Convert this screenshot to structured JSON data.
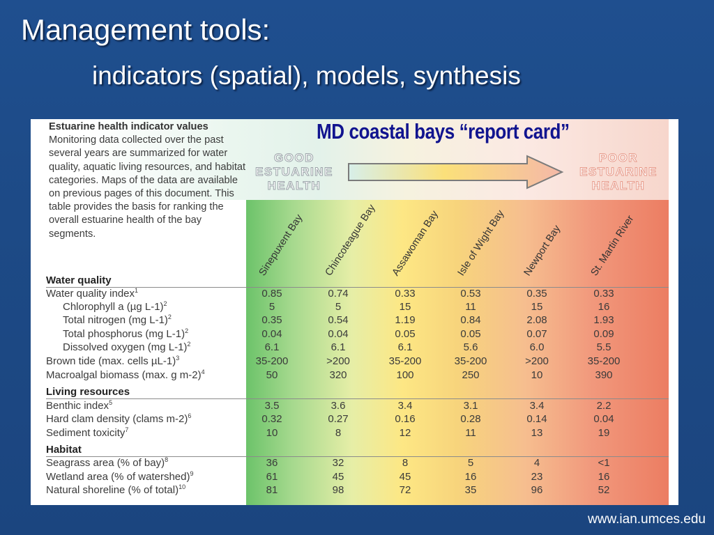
{
  "slide": {
    "title": "Management tools:",
    "subtitle": "indicators (spatial), models, synthesis",
    "footer": "www.ian.umces.edu"
  },
  "card": {
    "banner": "MD coastal bays “report card”",
    "intro_heading": "Estuarine health indicator values",
    "intro_body": "Monitoring data collected over the past several years are summarized for water quality, aquatic living resources, and habitat categories. Maps of the data are available on previous pages of this document. This table provides the basis for ranking the overall estuarine health of the bay segments.",
    "good_label": [
      "GOOD",
      "ESTUARINE",
      "HEALTH"
    ],
    "poor_label": [
      "POOR",
      "ESTUARINE",
      "HEALTH"
    ],
    "columns": [
      "Sinepuxent Bay",
      "Chincoteague Bay",
      "Assawoman Bay",
      "Isle of Wight Bay",
      "Newport Bay",
      "St. Martin River"
    ],
    "sections": [
      {
        "heading": "Water quality",
        "rows": [
          {
            "label": "Water quality index",
            "sup": "1",
            "indent": false,
            "values": [
              "0.85",
              "0.74",
              "0.33",
              "0.53",
              "0.35",
              "0.33"
            ]
          },
          {
            "label": "Chlorophyll a (µg L-1)",
            "sup": "2",
            "indent": true,
            "values": [
              "5",
              "5",
              "15",
              "11",
              "15",
              "16"
            ]
          },
          {
            "label": "Total nitrogen (mg L-1)",
            "sup": "2",
            "indent": true,
            "values": [
              "0.35",
              "0.54",
              "1.19",
              "0.84",
              "2.08",
              "1.93"
            ]
          },
          {
            "label": "Total phosphorus (mg L-1)",
            "sup": "2",
            "indent": true,
            "values": [
              "0.04",
              "0.04",
              "0.05",
              "0.05",
              "0.07",
              "0.09"
            ]
          },
          {
            "label": "Dissolved oxygen (mg L-1)",
            "sup": "2",
            "indent": true,
            "values": [
              "6.1",
              "6.1",
              "6.1",
              "5.6",
              "6.0",
              "5.5"
            ]
          },
          {
            "label": "Brown tide (max. cells µL-1)",
            "sup": "3",
            "indent": false,
            "values": [
              "35-200",
              ">200",
              "35-200",
              "35-200",
              ">200",
              "35-200"
            ]
          },
          {
            "label": "Macroalgal biomass (max. g m-2)",
            "sup": "4",
            "indent": false,
            "values": [
              "50",
              "320",
              "100",
              "250",
              "10",
              "390"
            ]
          }
        ]
      },
      {
        "heading": "Living resources",
        "rows": [
          {
            "label": "Benthic index",
            "sup": "5",
            "indent": false,
            "values": [
              "3.5",
              "3.6",
              "3.4",
              "3.1",
              "3.4",
              "2.2"
            ]
          },
          {
            "label": "Hard clam density (clams m-2)",
            "sup": "6",
            "indent": false,
            "values": [
              "0.32",
              "0.27",
              "0.16",
              "0.28",
              "0.14",
              "0.04"
            ]
          },
          {
            "label": "Sediment toxicity",
            "sup": "7",
            "indent": false,
            "values": [
              "10",
              "8",
              "12",
              "11",
              "13",
              "19"
            ]
          }
        ]
      },
      {
        "heading": "Habitat",
        "rows": [
          {
            "label": "Seagrass area (% of bay)",
            "sup": "8",
            "indent": false,
            "values": [
              "36",
              "32",
              "8",
              "5",
              "4",
              "<1"
            ]
          },
          {
            "label": "Wetland area (% of watershed)",
            "sup": "9",
            "indent": false,
            "values": [
              "61",
              "45",
              "45",
              "16",
              "23",
              "16"
            ]
          },
          {
            "label": "Natural shoreline (% of total)",
            "sup": "10",
            "indent": false,
            "values": [
              "81",
              "98",
              "72",
              "35",
              "96",
              "52"
            ]
          }
        ]
      }
    ]
  }
}
